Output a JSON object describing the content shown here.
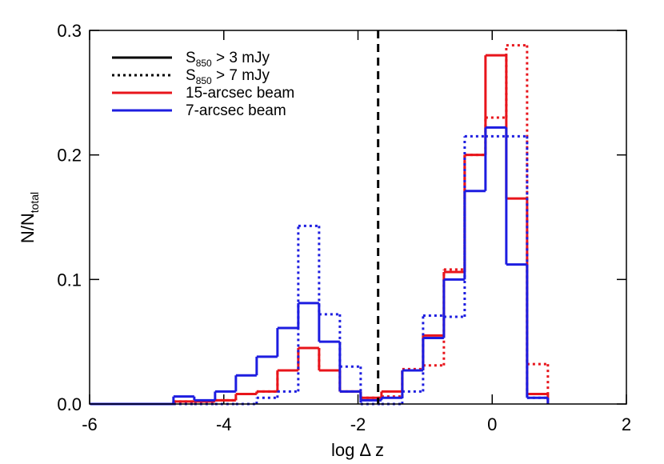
{
  "chart_data": {
    "type": "histogram",
    "xlabel": "log Δ z",
    "ylabel": [
      "N/N",
      "total"
    ],
    "xlim": [
      -6,
      2
    ],
    "ylim": [
      0,
      0.3
    ],
    "xticks": [
      -6,
      -4,
      -2,
      0,
      2
    ],
    "yticks": [
      {
        "value": 0,
        "label": "0.0"
      },
      0.1,
      0.2,
      0.3
    ],
    "bins": [
      -5.99,
      -5.68,
      -5.37,
      -5.06,
      -4.75,
      -4.44,
      -4.13,
      -3.82,
      -3.51,
      -3.2,
      -2.89,
      -2.58,
      -2.27,
      -1.96,
      -1.65,
      -1.34,
      -1.03,
      -0.72,
      -0.41,
      -0.1,
      0.21,
      0.52,
      0.83
    ],
    "series": [
      {
        "color": "#e8141b",
        "dash": "solid",
        "values": [
          0,
          0,
          0,
          0,
          0.002,
          0.002,
          0.003,
          0.008,
          0.01,
          0.027,
          0.045,
          0.027,
          0.01,
          0.005,
          0.01,
          0.027,
          0.055,
          0.106,
          0.2,
          0.28,
          0.165,
          0.008
        ]
      },
      {
        "color": "#e8141b",
        "dash": "dotted",
        "values": [
          0,
          0,
          0,
          0,
          0.002,
          0.002,
          0.003,
          0.008,
          0.01,
          0.027,
          0.045,
          0.027,
          0.01,
          0.005,
          0.006,
          0.028,
          0.031,
          0.108,
          0.2,
          0.23,
          0.288,
          0.032
        ]
      },
      {
        "color": "#1d1de0",
        "dash": "solid",
        "values": [
          0,
          0,
          0,
          0,
          0.006,
          0.003,
          0.01,
          0.023,
          0.038,
          0.061,
          0.081,
          0.05,
          0.01,
          0.003,
          0.005,
          0.027,
          0.053,
          0.1,
          0.171,
          0.222,
          0.112,
          0.005
        ]
      },
      {
        "color": "#1d1de0",
        "dash": "dotted",
        "values": [
          0,
          0,
          0,
          0,
          0,
          0,
          0,
          0,
          0.005,
          0.01,
          0.143,
          0.072,
          0.03,
          0,
          0,
          0.01,
          0.071,
          0.07,
          0.215,
          0.215,
          0.215,
          0.005
        ]
      }
    ],
    "vline": {
      "x": -1.7,
      "color": "#000000",
      "dash": "dashed"
    },
    "legend_position": "upper left",
    "legend": [
      {
        "label": [
          "S",
          "850",
          " > 3 mJy"
        ],
        "color": "#000000",
        "dash": "solid"
      },
      {
        "label": [
          "S",
          "850",
          " > 7 mJy"
        ],
        "color": "#000000",
        "dash": "dotted"
      },
      {
        "label": [
          "15-arcsec beam"
        ],
        "color": "#e8141b",
        "dash": "solid"
      },
      {
        "label": [
          "7-arcsec beam"
        ],
        "color": "#1d1de0",
        "dash": "solid"
      }
    ]
  }
}
